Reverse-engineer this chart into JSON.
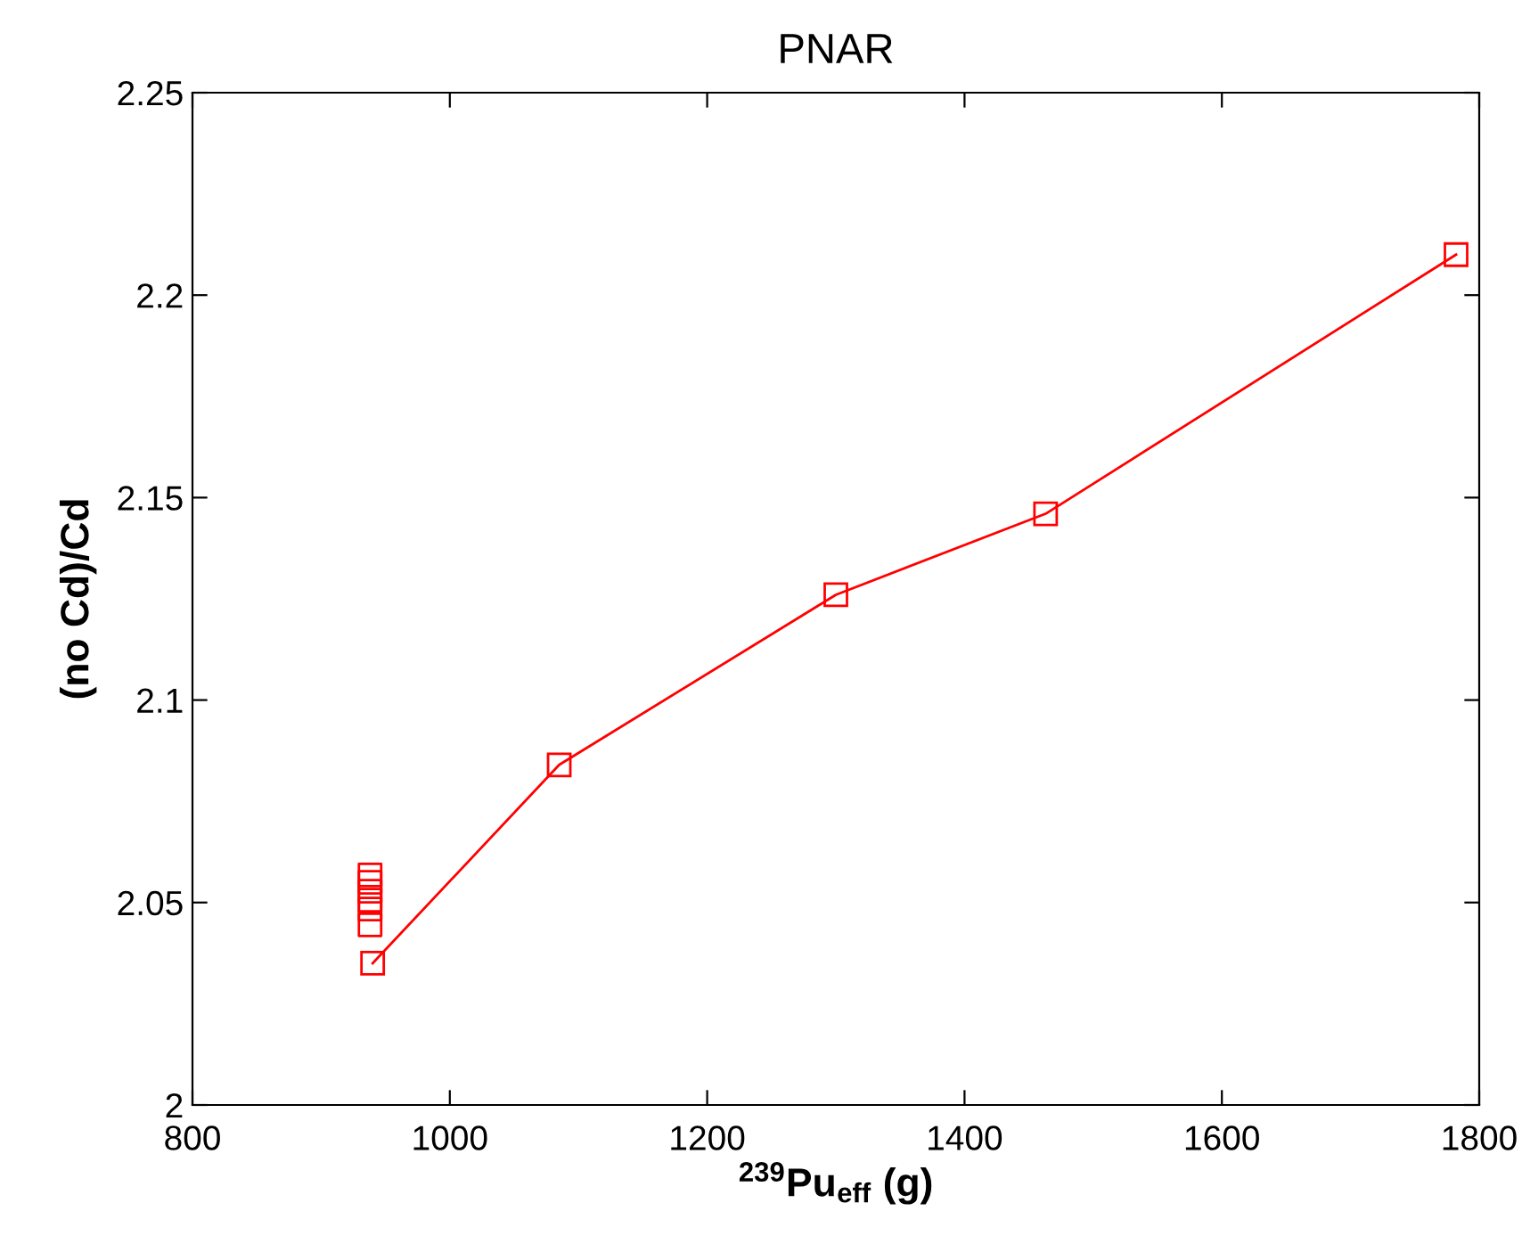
{
  "chart_data": {
    "type": "line",
    "title": "PNAR",
    "xlabel": "$^{239}$Pu$_{eff}$ (g)",
    "ylabel": "(no Cd)/Cd",
    "xlim": [
      800,
      1800
    ],
    "xticks": [
      800,
      1000,
      1200,
      1400,
      1600,
      1800
    ],
    "ylim": [
      2,
      2.25
    ],
    "yticks": [
      2,
      2.05,
      2.1,
      2.15,
      2.2,
      2.25
    ],
    "grid": false,
    "legend": false,
    "series": [
      {
        "color": "#ff0000",
        "marker": "square",
        "x": [
          940,
          1085,
          1300,
          1463,
          1782
        ],
        "values": [
          2.035,
          2.084,
          2.126,
          2.146,
          2.21
        ]
      },
      {
        "type": "scatter",
        "color": "#ff0000",
        "marker": "square",
        "x": [
          938,
          938,
          938,
          938,
          938,
          938
        ],
        "values": [
          2.0568,
          2.055,
          2.0528,
          2.0506,
          2.0484,
          2.0445
        ]
      }
    ]
  }
}
